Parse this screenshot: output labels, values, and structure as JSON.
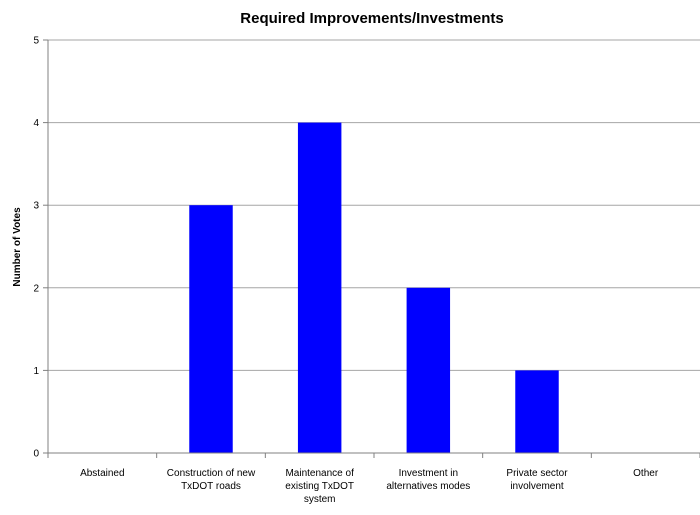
{
  "chart_data": {
    "type": "bar",
    "title": "Required Improvements/Investments",
    "ylabel": "Number of Votes",
    "xlabel": "",
    "categories": [
      "Abstained",
      "Construction of new TxDOT roads",
      "Maintenance of existing TxDOT system",
      "Investment in alternatives modes",
      "Private sector involvement",
      "Other"
    ],
    "category_lines": [
      [
        "Abstained"
      ],
      [
        "Construction of new",
        "TxDOT roads"
      ],
      [
        "Maintenance of",
        "existing TxDOT",
        "system"
      ],
      [
        "Investment in",
        "alternatives modes"
      ],
      [
        "Private sector",
        "involvement"
      ],
      [
        "Other"
      ]
    ],
    "values": [
      0,
      3,
      4,
      2,
      1,
      0
    ],
    "ylim": [
      0,
      5
    ],
    "yticks": [
      "0",
      "1",
      "2",
      "3",
      "4",
      "5"
    ],
    "grid": true,
    "legend": "none",
    "colors": {
      "bar": "#0000ff",
      "grid": "#a6a6a6",
      "axis": "#808080",
      "text": "#000000"
    }
  }
}
